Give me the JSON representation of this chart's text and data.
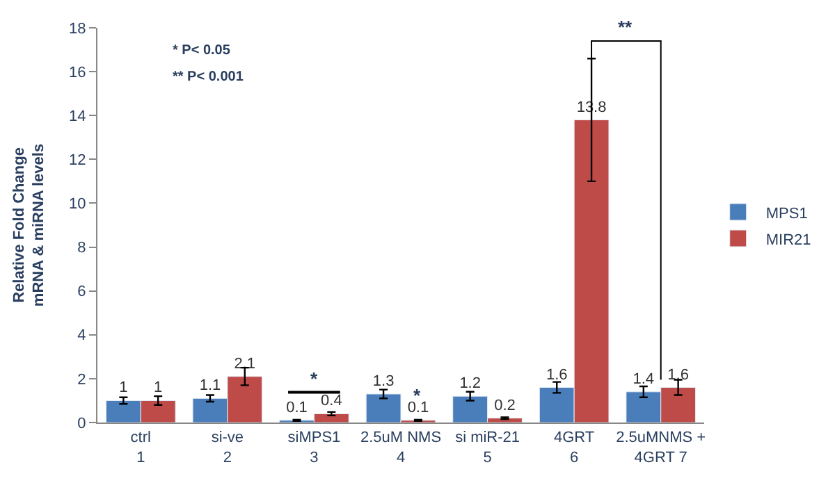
{
  "chart_data": {
    "type": "bar",
    "ylabel": "Relative Fold Change\nmRNA & miRNA levels",
    "categories": [
      "ctrl\n1",
      "si-ve\n2",
      "siMPS1\n3",
      "2.5uM NMS\n4",
      "si miR-21\n5",
      "4GRT\n6",
      "2.5uMNMS +\n4GRT 7"
    ],
    "series": [
      {
        "name": "MPS1",
        "color": "#4a7ebb",
        "values": [
          1,
          1.1,
          0.1,
          1.3,
          1.2,
          1.6,
          1.4
        ],
        "errors": [
          0.15,
          0.15,
          0.03,
          0.2,
          0.2,
          0.25,
          0.25
        ]
      },
      {
        "name": "MIR21",
        "color": "#be4b48",
        "values": [
          1,
          2.1,
          0.4,
          0.1,
          0.2,
          13.8,
          1.6
        ],
        "errors": [
          0.2,
          0.4,
          0.08,
          0.03,
          0.04,
          2.8,
          0.35
        ]
      }
    ],
    "ylim": [
      0,
      18
    ],
    "yticks": [
      0,
      2,
      4,
      6,
      8,
      10,
      12,
      14,
      16,
      18
    ],
    "data_labels": true,
    "legend": "right",
    "annotations": [
      "* P< 0.05",
      "** P< 0.001",
      "*",
      "*",
      "**"
    ]
  }
}
